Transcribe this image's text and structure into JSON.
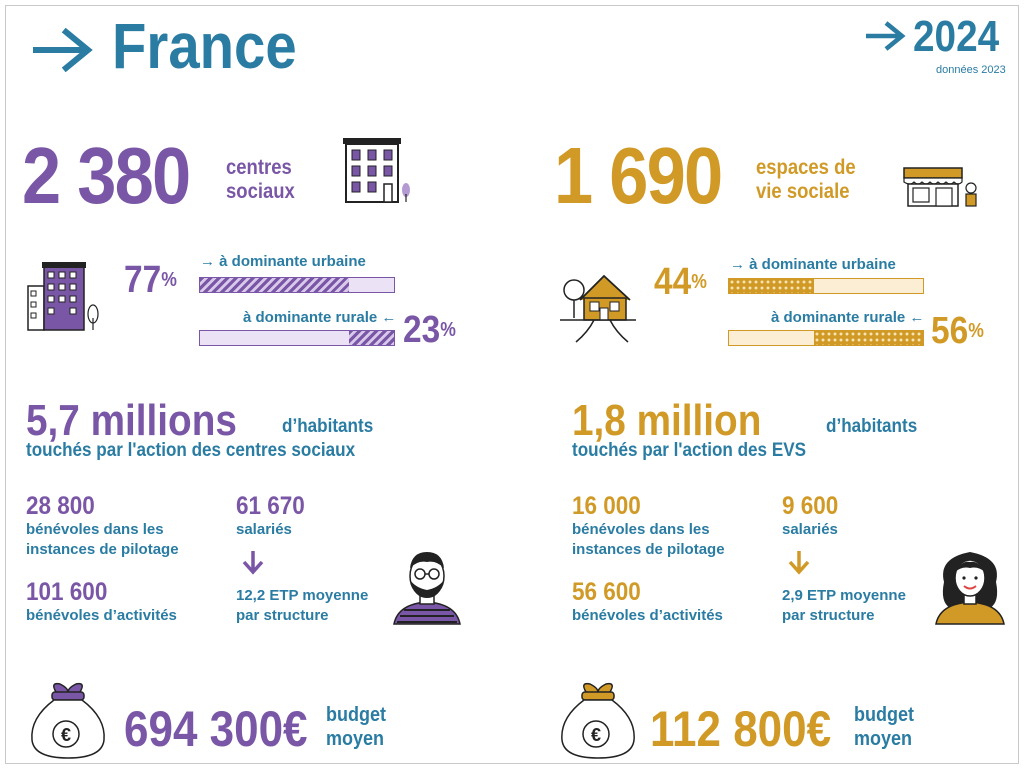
{
  "header": {
    "title": "France",
    "year": "2024",
    "data_year": "données 2023"
  },
  "centres": {
    "count": "2 380",
    "label_line1": "centres",
    "label_line2": "sociaux",
    "urban_pct": "77",
    "rural_pct": "23",
    "urban_label": "→ à dominante urbaine",
    "rural_label": "à dominante rurale ←",
    "urban_fill": 0.77,
    "rural_fill": 0.23,
    "inhabitants_value": "5,7 millions",
    "inhabitants_unit": "d’habitants",
    "inhabitants_caption": "touchés par l'action des centres sociaux",
    "volunteers_pilot_value": "28 800",
    "volunteers_pilot_label_1": "bénévoles dans les",
    "volunteers_pilot_label_2": "instances de pilotage",
    "volunteers_act_value": "101 600",
    "volunteers_act_label": "bénévoles d’activités",
    "employees_value": "61 670",
    "employees_label": "salariés",
    "etp_line1": "12,2 ETP moyenne",
    "etp_line2": "par structure",
    "budget_value": "694 300€",
    "budget_line1": "budget",
    "budget_line2": "moyen"
  },
  "evs": {
    "count": "1 690",
    "label_line1": "espaces de",
    "label_line2": "vie sociale",
    "urban_pct": "44",
    "rural_pct": "56",
    "urban_label": "→ à dominante urbaine",
    "rural_label": "à dominante rurale ←",
    "urban_fill": 0.44,
    "rural_fill": 0.56,
    "inhabitants_value": "1,8 million",
    "inhabitants_unit": "d’habitants",
    "inhabitants_caption": "touchés par l'action des EVS",
    "volunteers_pilot_value": "16 000",
    "volunteers_pilot_label_1": "bénévoles dans les",
    "volunteers_pilot_label_2": "instances de pilotage",
    "volunteers_act_value": "56 600",
    "volunteers_act_label": "bénévoles d’activités",
    "employees_value": "9 600",
    "employees_label": "salariés",
    "etp_line1": "2,9 ETP moyenne",
    "etp_line2": "par structure",
    "budget_value": "112 800€",
    "budget_line1": "budget",
    "budget_line2": "moyen"
  },
  "colors": {
    "blue": "#2a7ca3",
    "purple": "#7a57a6",
    "gold": "#d19a27"
  },
  "icons": [
    "arrow-right-icon",
    "apartment-building-icon",
    "city-buildings-icon",
    "shop-icon",
    "house-countryside-icon",
    "man-avatar-icon",
    "woman-avatar-icon",
    "money-bag-icon",
    "arrow-down-icon"
  ]
}
